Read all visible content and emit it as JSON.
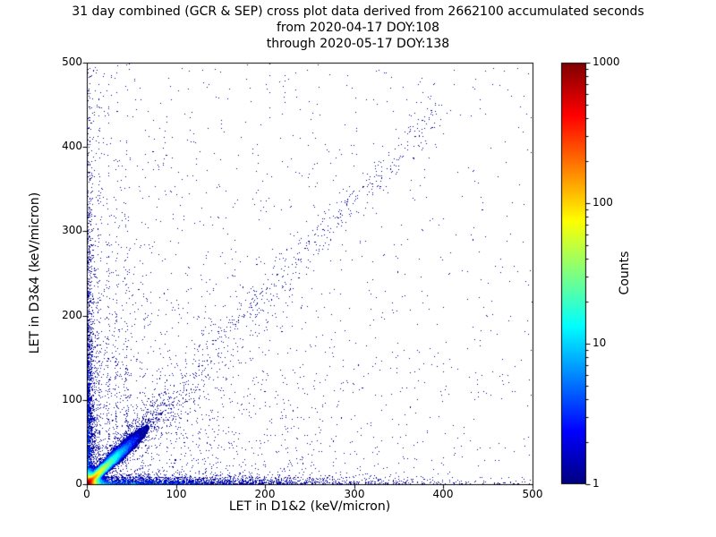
{
  "figure": {
    "background": "#ffffff",
    "title_line1": "31 day combined (GCR & SEP) cross plot data derived from 2662100 accumulated seconds",
    "title_line2": "from 2020-04-17 DOY:108",
    "title_line3": "through 2020-05-17 DOY:138"
  },
  "chart_data": {
    "type": "scatter",
    "subtype": "2d-density-histogram",
    "title": "31 day combined (GCR & SEP) cross plot data derived from 2662100 accumulated seconds from 2020-04-17 DOY:108 through 2020-05-17 DOY:138",
    "duration_days": 31,
    "accumulated_seconds": 2662100,
    "date_start": "2020-04-17",
    "doy_start": 108,
    "date_end": "2020-05-17",
    "doy_end": 138,
    "xlabel": "LET in D1&2 (keV/micron)",
    "ylabel": "LET in D3&4 (keV/micron)",
    "xlim": [
      0,
      500
    ],
    "ylim": [
      0,
      500
    ],
    "xticks": [
      0,
      100,
      200,
      300,
      400,
      500
    ],
    "yticks": [
      0,
      100,
      200,
      300,
      400,
      500
    ],
    "grid": false,
    "point_color_low": "#000080",
    "colorbar": {
      "label": "Counts",
      "scale": "log",
      "min": 1,
      "max": 1000,
      "ticks": [
        1,
        10,
        100,
        1000
      ],
      "colormap": "jet",
      "position": "right"
    },
    "fields": [
      {
        "name": "origin-hotspot",
        "type": "radial-exp",
        "amp": 1450,
        "scale": 2.8,
        "max_r": 55
      },
      {
        "name": "diagonal-ridge",
        "type": "ridge",
        "amp": 260,
        "d_scale": 11,
        "width0": 1.2,
        "width_rate": 0.06,
        "max_d": 120
      }
    ],
    "points": {
      "seed": 20200417,
      "components": [
        {
          "name": "bottom-band-along-x-axis",
          "type": "band-x",
          "n": 3200,
          "x_mean": 115,
          "y_mean": 3.5
        },
        {
          "name": "left-band-along-y-axis",
          "type": "band-y",
          "n": 2700,
          "y_mean": 125,
          "x_mean": 3.5
        },
        {
          "name": "main-diagonal-speckle",
          "type": "diag",
          "n": 2600,
          "d_mean": 35,
          "slope": 1.05,
          "spread0": 1.5,
          "spread_rate": 0.12
        },
        {
          "name": "upper-diagonal-band",
          "type": "diag-uniform",
          "n": 430,
          "d_min": 130,
          "d_max": 400,
          "slope": 1.12,
          "spread": 13
        },
        {
          "name": "quadrant-scatter",
          "type": "indep-exp",
          "n": 1600,
          "x_mean": 140,
          "y_mean": 140
        },
        {
          "name": "far-field-sparse",
          "type": "uniform",
          "n": 620
        },
        {
          "name": "vertical-streaks",
          "type": "streaks",
          "n": 430,
          "xs": [
            14,
            24,
            33,
            44
          ],
          "jitter": 1.2,
          "y_mean": 165
        }
      ]
    }
  }
}
